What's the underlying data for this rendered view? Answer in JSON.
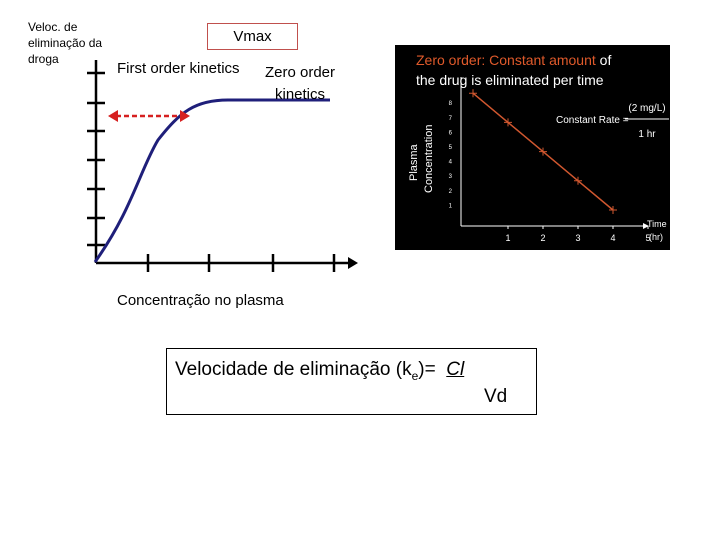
{
  "main_diagram": {
    "y_axis_label": "Veloc. de eliminação da droga",
    "x_axis_label": "Concentração no plasma",
    "first_order_label": "First order kinetics",
    "zero_order_label": "Zero  order kinetics",
    "vmax_label": "Vmax",
    "colors": {
      "curve": "#1f1f7a",
      "arrow": "#d62020",
      "vmax_border": "#c0504d"
    }
  },
  "inset": {
    "title_prefix": "Zero order: Constant ",
    "title_highlight": "amount",
    "title_suffix": " of",
    "title_line2": "the drug is eliminated per time",
    "y_label_line1": "Plasma",
    "y_label_line2": "Concentration",
    "rate_label": "Constant Rate =",
    "rate_numerator": "(2 mg/L)",
    "rate_denominator": "1 hr",
    "x_label_line1": "Time",
    "x_label_line2": "(hr)",
    "colors": {
      "background": "#000000",
      "highlight": "#e05a2b",
      "line": "#d0572f",
      "text": "#ffffff"
    },
    "chart_data": {
      "type": "line",
      "x": [
        0,
        1,
        2,
        3,
        4
      ],
      "y": [
        8,
        6,
        4,
        2,
        0
      ],
      "x_ticks": [
        "1",
        "2",
        "3",
        "4",
        "5"
      ],
      "y_ticks": [
        "1",
        "2",
        "3",
        "4",
        "5",
        "6",
        "7",
        "8"
      ],
      "xlim": [
        0,
        5
      ],
      "ylim": [
        0,
        8
      ],
      "xlabel": "Time (hr)",
      "ylabel": "Plasma Concentration"
    }
  },
  "formula": {
    "lhs": "Velocidade de eliminação (k",
    "subscript": "e",
    "rhs_prefix": ")=  ",
    "numerator": "Cl",
    "denominator": "Vd"
  }
}
